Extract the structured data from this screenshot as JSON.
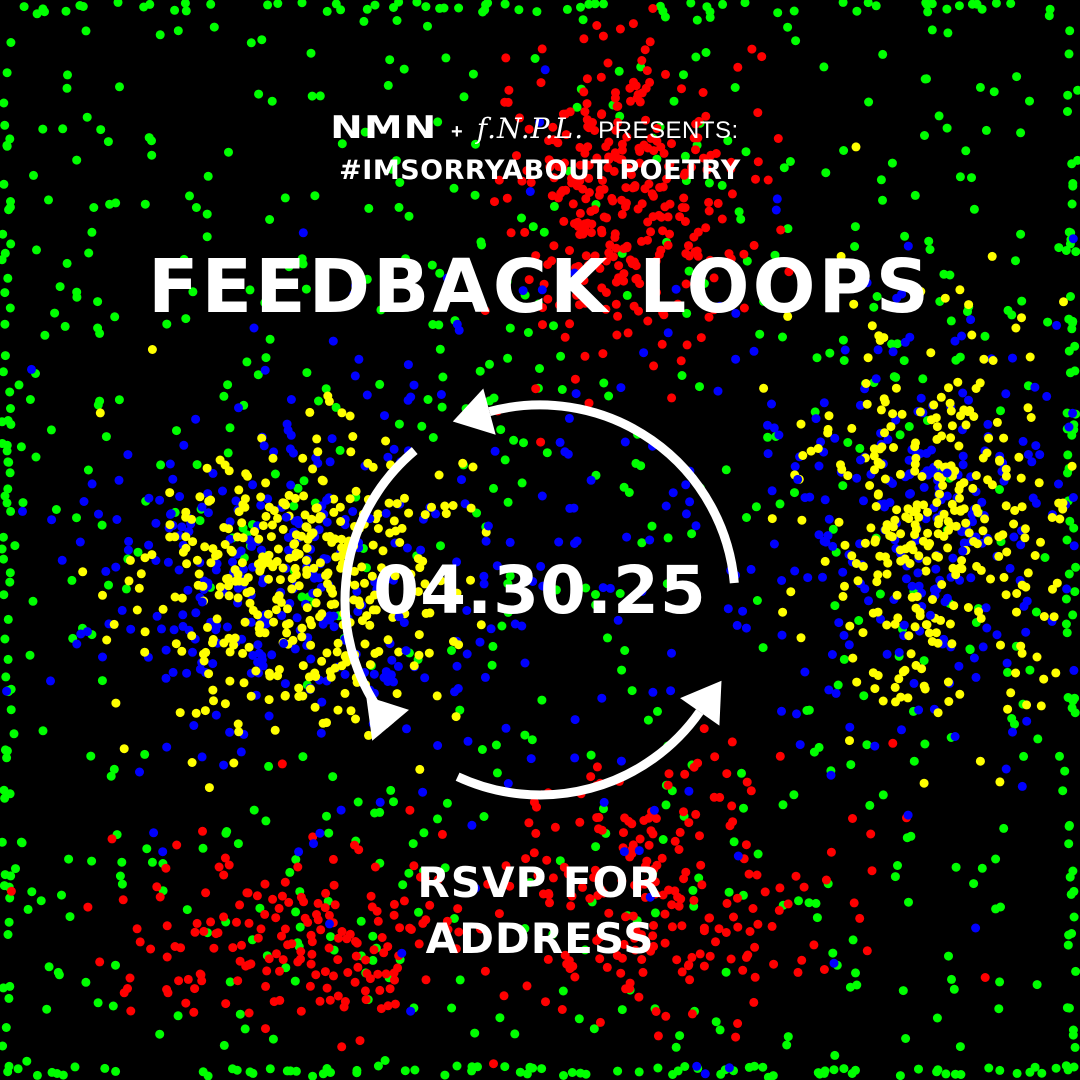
{
  "header": {
    "brand_primary": "NMN",
    "separator": "+",
    "brand_secondary": "f.N.P.L.",
    "presents": "PRESENTS:"
  },
  "hashtag": "#IMSORRYABOUT POETRY",
  "title": "FEEDBACK LOOPS",
  "date": "04.30.25",
  "rsvp": {
    "line1": "RSVP FOR",
    "line2": "ADDRESS"
  },
  "colors": {
    "background": "#000000",
    "text": "#ffffff",
    "dot_red": "#ff0000",
    "dot_green": "#00ff00",
    "dot_blue": "#0000ff",
    "dot_yellow": "#ffff00"
  },
  "icons": [
    "cycle-arrows-icon"
  ]
}
